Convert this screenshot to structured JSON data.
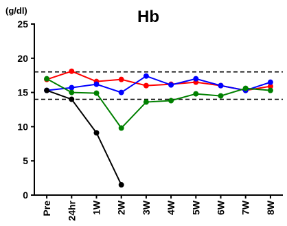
{
  "chart_data": {
    "type": "line",
    "title": "Hb",
    "ylabel": "(g/dl)",
    "xlabel": "",
    "categories": [
      "Pre",
      "24hr",
      "1W",
      "2W",
      "3W",
      "4W",
      "5W",
      "6W",
      "7W",
      "8W"
    ],
    "ylim": [
      0,
      25
    ],
    "yticks": [
      0,
      5,
      10,
      15,
      20,
      25
    ],
    "reference_lines": [
      14,
      18
    ],
    "legend": "none",
    "grid": false,
    "series": [
      {
        "color": "#ff0000",
        "values": [
          16.9,
          18.1,
          16.6,
          16.9,
          16.0,
          16.2,
          16.5,
          16.0,
          15.3,
          15.9
        ]
      },
      {
        "color": "#0000ff",
        "values": [
          15.3,
          15.7,
          16.2,
          15.0,
          17.4,
          16.1,
          17.0,
          16.0,
          15.3,
          16.5
        ]
      },
      {
        "color": "#008000",
        "values": [
          17.0,
          15.0,
          14.9,
          9.8,
          13.6,
          13.8,
          14.8,
          14.5,
          15.6,
          15.3
        ]
      },
      {
        "color": "#000000",
        "values": [
          15.3,
          14.0,
          9.1,
          1.5,
          null,
          null,
          null,
          null,
          null,
          null
        ]
      }
    ]
  }
}
